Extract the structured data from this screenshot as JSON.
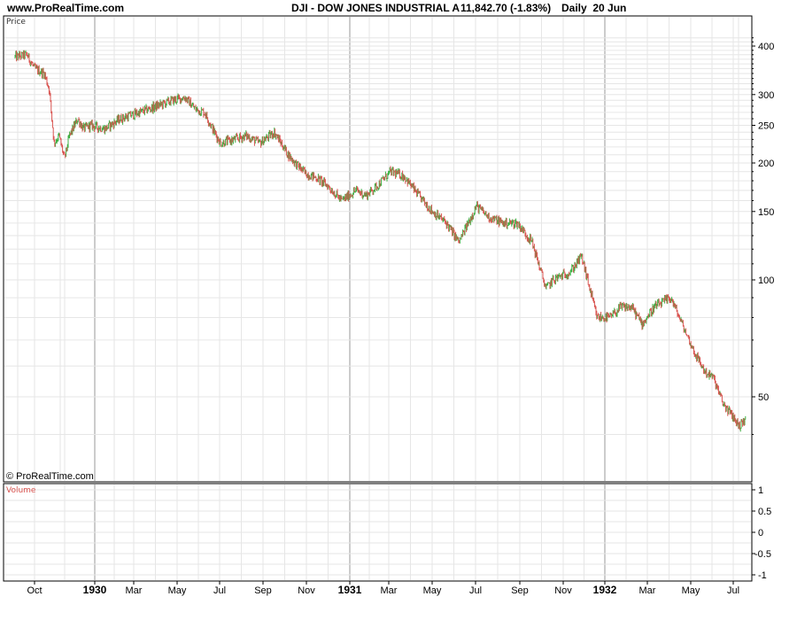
{
  "header": {
    "site": "www.ProRealTime.com",
    "symbol": "DJI - DOW JONES INDUSTRIAL A",
    "last": "11,842.70 (-1.83%)",
    "period": "Daily  20 Jun"
  },
  "panels": {
    "price_label": "Price",
    "volume_label": "Volume",
    "copyright": "© ProRealTime.com"
  },
  "colors": {
    "up": "#3cb043",
    "down": "#d9534f",
    "grid": "#e6e6e6",
    "year_line": "#999999"
  },
  "chart_data": {
    "type": "line",
    "title": "DJI - DOW JONES INDUSTRIAL A",
    "scale": "log",
    "ylim": [
      30,
      460
    ],
    "yticks": [
      50,
      100,
      150,
      200,
      250,
      300,
      400
    ],
    "x_months": [
      "Oct",
      "1930",
      "Mar",
      "May",
      "Jul",
      "Sep",
      "Nov",
      "1931",
      "Mar",
      "May",
      "Jul",
      "Sep",
      "Nov",
      "1932",
      "Mar",
      "May",
      "Jul"
    ],
    "x_year_labels": [
      "1930",
      "1931",
      "1932"
    ],
    "grid": true,
    "series": [
      {
        "x": [
          "1929-09-03",
          "1929-09-20",
          "1929-10-01",
          "1929-10-15",
          "1929-10-22",
          "1929-10-29",
          "1929-11-05",
          "1929-11-13",
          "1929-11-20",
          "1929-12-02",
          "1929-12-10",
          "1929-12-20",
          "1930-01-10",
          "1930-02-01",
          "1930-03-01",
          "1930-03-25",
          "1930-04-17",
          "1930-05-05",
          "1930-05-20",
          "1930-06-02",
          "1930-06-16",
          "1930-06-25",
          "1930-07-15",
          "1930-08-01",
          "1930-08-20",
          "1930-09-10",
          "1930-09-30",
          "1930-10-10",
          "1930-10-25",
          "1930-11-10",
          "1930-11-25",
          "1930-12-16",
          "1931-01-05",
          "1931-01-20",
          "1931-02-05",
          "1931-02-24",
          "1931-03-15",
          "1931-04-05",
          "1931-04-25",
          "1931-05-15",
          "1931-06-02",
          "1931-06-27",
          "1931-07-15",
          "1931-08-05",
          "1931-08-25",
          "1931-09-15",
          "1931-10-05",
          "1931-10-15",
          "1931-11-09",
          "1931-11-25",
          "1931-12-17",
          "1932-01-05",
          "1932-01-20",
          "1932-02-05",
          "1932-02-20",
          "1932-03-08",
          "1932-04-01",
          "1932-04-20",
          "1932-05-05",
          "1932-05-20",
          "1932-06-01",
          "1932-06-15",
          "1932-07-01",
          "1932-07-08",
          "1932-07-18"
        ],
        "y": [
          375,
          380,
          350,
          340,
          310,
          225,
          235,
          205,
          235,
          260,
          245,
          250,
          245,
          260,
          270,
          280,
          290,
          295,
          275,
          270,
          240,
          225,
          230,
          235,
          225,
          240,
          210,
          200,
          188,
          183,
          175,
          160,
          170,
          165,
          175,
          190,
          185,
          165,
          150,
          140,
          125,
          155,
          145,
          140,
          140,
          125,
          95,
          100,
          105,
          115,
          80,
          80,
          85,
          85,
          77,
          85,
          90,
          75,
          65,
          58,
          56,
          48,
          44,
          42,
          44
        ]
      }
    ]
  }
}
